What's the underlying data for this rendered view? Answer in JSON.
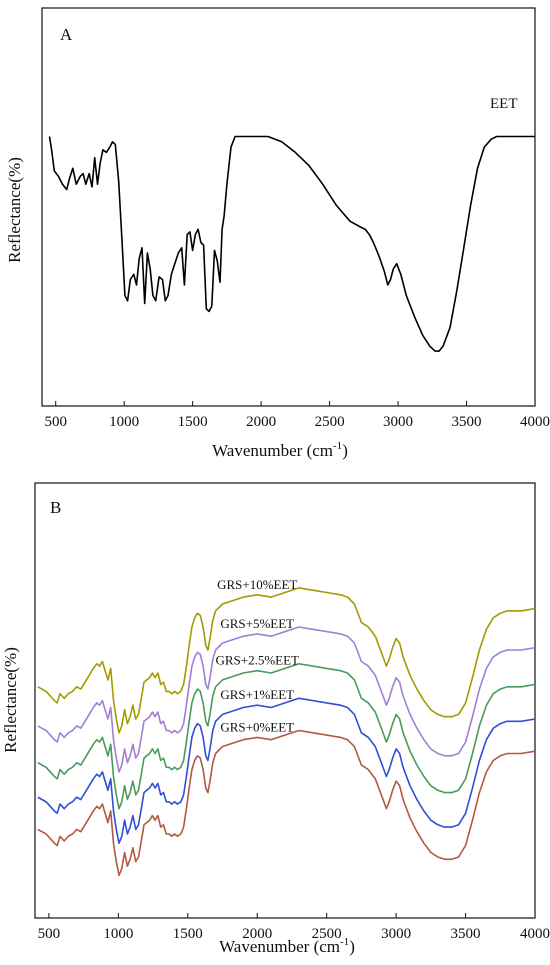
{
  "chart_data": [
    {
      "type": "line",
      "panel_label": "A",
      "xlabel": "Wavenumber (cm",
      "xlabel_sup": "-1",
      "xlabel_close": ")",
      "ylabel": "Reflectance(%)",
      "xlim": [
        400,
        4000
      ],
      "ylim": [
        0,
        100
      ],
      "grid": false,
      "xticks": [
        500,
        1000,
        1500,
        2000,
        2500,
        3000,
        3500,
        4000
      ],
      "series": [
        {
          "name": "EET",
          "color": "#000000",
          "points": [
            [
              455,
              90
            ],
            [
              470,
              85
            ],
            [
              490,
              77
            ],
            [
              520,
              75
            ],
            [
              550,
              72
            ],
            [
              580,
              70
            ],
            [
              600,
              74
            ],
            [
              625,
              78
            ],
            [
              650,
              72
            ],
            [
              680,
              75
            ],
            [
              700,
              76
            ],
            [
              720,
              72
            ],
            [
              745,
              76
            ],
            [
              765,
              71
            ],
            [
              785,
              82
            ],
            [
              805,
              72
            ],
            [
              825,
              80
            ],
            [
              845,
              85
            ],
            [
              870,
              84
            ],
            [
              895,
              86
            ],
            [
              915,
              88
            ],
            [
              935,
              87
            ],
            [
              960,
              73
            ],
            [
              985,
              50
            ],
            [
              1005,
              30
            ],
            [
              1025,
              28
            ],
            [
              1045,
              36
            ],
            [
              1070,
              38
            ],
            [
              1090,
              34
            ],
            [
              1110,
              44
            ],
            [
              1130,
              48
            ],
            [
              1150,
              27
            ],
            [
              1170,
              46
            ],
            [
              1190,
              40
            ],
            [
              1210,
              30
            ],
            [
              1230,
              28
            ],
            [
              1255,
              37
            ],
            [
              1280,
              36
            ],
            [
              1300,
              28
            ],
            [
              1320,
              30
            ],
            [
              1345,
              38
            ],
            [
              1370,
              42
            ],
            [
              1395,
              46
            ],
            [
              1420,
              48
            ],
            [
              1440,
              34
            ],
            [
              1460,
              53
            ],
            [
              1480,
              54
            ],
            [
              1500,
              47
            ],
            [
              1520,
              53
            ],
            [
              1540,
              55
            ],
            [
              1560,
              50
            ],
            [
              1580,
              49
            ],
            [
              1600,
              25
            ],
            [
              1620,
              24
            ],
            [
              1640,
              26
            ],
            [
              1660,
              47
            ],
            [
              1680,
              43
            ],
            [
              1700,
              35
            ],
            [
              1715,
              55
            ],
            [
              1730,
              60
            ],
            [
              1750,
              72
            ],
            [
              1780,
              86
            ],
            [
              1810,
              90
            ],
            [
              1850,
              90
            ],
            [
              1950,
              90
            ],
            [
              2050,
              90
            ],
            [
              2150,
              88
            ],
            [
              2250,
              84
            ],
            [
              2350,
              79
            ],
            [
              2450,
              72
            ],
            [
              2550,
              64
            ],
            [
              2650,
              58
            ],
            [
              2720,
              56
            ],
            [
              2760,
              55
            ],
            [
              2790,
              53
            ],
            [
              2820,
              50
            ],
            [
              2860,
              45
            ],
            [
              2900,
              39
            ],
            [
              2925,
              34
            ],
            [
              2945,
              36
            ],
            [
              2965,
              40
            ],
            [
              2990,
              42
            ],
            [
              3020,
              38
            ],
            [
              3060,
              30
            ],
            [
              3120,
              22
            ],
            [
              3180,
              15
            ],
            [
              3230,
              11
            ],
            [
              3270,
              9
            ],
            [
              3300,
              9
            ],
            [
              3330,
              11
            ],
            [
              3380,
              18
            ],
            [
              3430,
              32
            ],
            [
              3480,
              48
            ],
            [
              3530,
              64
            ],
            [
              3580,
              78
            ],
            [
              3630,
              86
            ],
            [
              3680,
              89
            ],
            [
              3720,
              90
            ],
            [
              3800,
              90
            ],
            [
              3900,
              90
            ],
            [
              4000,
              90
            ]
          ]
        }
      ],
      "annotation": "EET"
    },
    {
      "type": "line",
      "panel_label": "B",
      "xlabel": "Wavenumber (cm",
      "xlabel_sup": "-1",
      "xlabel_close": ")",
      "ylabel": "Reflectance(%)",
      "xlim": [
        400,
        4000
      ],
      "ylim": [
        0,
        100
      ],
      "grid": false,
      "xticks": [
        500,
        1000,
        1500,
        2000,
        2500,
        3000,
        3500,
        4000
      ],
      "series": [
        {
          "name": "GRS+10%EET",
          "color": "#a39b00",
          "offset": 62
        },
        {
          "name": "GRS+5%EET",
          "color": "#a27ed4",
          "offset": 45
        },
        {
          "name": "GRS+2.5%EET",
          "color": "#4a9a5a",
          "offset": 29
        },
        {
          "name": "GRS+1%EET",
          "color": "#2f4fd6",
          "offset": 14
        },
        {
          "name": "GRS+0%EET",
          "color": "#b05a40",
          "offset": 0
        }
      ],
      "base_shape": [
        [
          420,
          22
        ],
        [
          450,
          21
        ],
        [
          480,
          20
        ],
        [
          510,
          18
        ],
        [
          540,
          16
        ],
        [
          560,
          15
        ],
        [
          580,
          19
        ],
        [
          610,
          17
        ],
        [
          640,
          19
        ],
        [
          670,
          20
        ],
        [
          700,
          22
        ],
        [
          730,
          21
        ],
        [
          760,
          24
        ],
        [
          790,
          27
        ],
        [
          820,
          30
        ],
        [
          845,
          32
        ],
        [
          865,
          31
        ],
        [
          885,
          33
        ],
        [
          905,
          29
        ],
        [
          925,
          25
        ],
        [
          945,
          30
        ],
        [
          965,
          16
        ],
        [
          985,
          8
        ],
        [
          1005,
          2
        ],
        [
          1025,
          5
        ],
        [
          1045,
          12
        ],
        [
          1065,
          6
        ],
        [
          1085,
          9
        ],
        [
          1105,
          14
        ],
        [
          1125,
          8
        ],
        [
          1145,
          10
        ],
        [
          1165,
          17
        ],
        [
          1185,
          24
        ],
        [
          1205,
          25
        ],
        [
          1225,
          26
        ],
        [
          1245,
          28
        ],
        [
          1265,
          26
        ],
        [
          1285,
          28
        ],
        [
          1305,
          23
        ],
        [
          1325,
          24
        ],
        [
          1345,
          20
        ],
        [
          1365,
          20
        ],
        [
          1385,
          19
        ],
        [
          1405,
          20
        ],
        [
          1425,
          19
        ],
        [
          1450,
          20
        ],
        [
          1470,
          23
        ],
        [
          1490,
          31
        ],
        [
          1510,
          40
        ],
        [
          1530,
          48
        ],
        [
          1550,
          52
        ],
        [
          1570,
          54
        ],
        [
          1590,
          53
        ],
        [
          1610,
          48
        ],
        [
          1630,
          40
        ],
        [
          1645,
          38
        ],
        [
          1660,
          43
        ],
        [
          1680,
          51
        ],
        [
          1700,
          55
        ],
        [
          1750,
          58
        ],
        [
          1800,
          59
        ],
        [
          1900,
          61
        ],
        [
          2000,
          62
        ],
        [
          2100,
          61
        ],
        [
          2200,
          63
        ],
        [
          2300,
          65
        ],
        [
          2400,
          64
        ],
        [
          2500,
          63
        ],
        [
          2600,
          62
        ],
        [
          2650,
          61
        ],
        [
          2700,
          58
        ],
        [
          2750,
          50
        ],
        [
          2800,
          48
        ],
        [
          2850,
          44
        ],
        [
          2900,
          36
        ],
        [
          2930,
          31
        ],
        [
          2950,
          34
        ],
        [
          2975,
          39
        ],
        [
          3000,
          43
        ],
        [
          3025,
          41
        ],
        [
          3050,
          35
        ],
        [
          3100,
          27
        ],
        [
          3150,
          21
        ],
        [
          3200,
          16
        ],
        [
          3250,
          12
        ],
        [
          3300,
          10
        ],
        [
          3350,
          9
        ],
        [
          3400,
          9
        ],
        [
          3450,
          10
        ],
        [
          3500,
          15
        ],
        [
          3550,
          26
        ],
        [
          3600,
          38
        ],
        [
          3650,
          47
        ],
        [
          3700,
          52
        ],
        [
          3750,
          54
        ],
        [
          3800,
          55
        ],
        [
          3900,
          55
        ],
        [
          4000,
          56
        ]
      ]
    }
  ]
}
